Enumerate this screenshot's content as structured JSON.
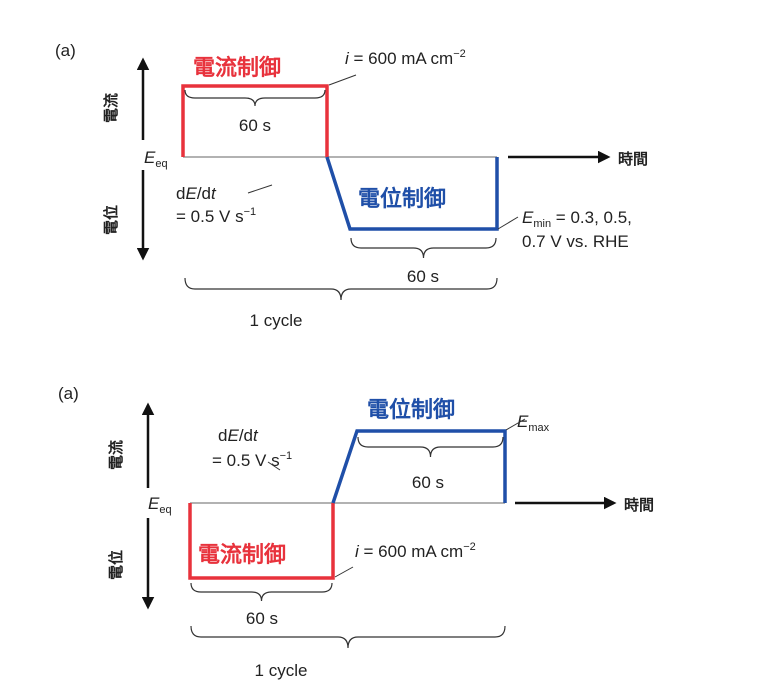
{
  "colors": {
    "current_control": "#e8323c",
    "potential_control": "#1f4fa8",
    "axis": "#111111",
    "baseline": "#888888"
  },
  "diagrams": [
    {
      "panel_label": "(a)",
      "y_axis_up": "電流",
      "y_axis_down": "電位",
      "x_axis": "時間",
      "eeq_main": "E",
      "eeq_sub": "eq",
      "current_control_label": "電流制御",
      "potential_control_label": "電位制御",
      "current_value_i": "i",
      "current_value_rest": " = 600 mA cm",
      "current_value_exp": "−2",
      "duration_current": "60 s",
      "duration_potential": "60 s",
      "sweep_line1_d": "d",
      "sweep_line1_E": "E",
      "sweep_line1_slash": "/d",
      "sweep_line1_t": "t",
      "sweep_line2": "= 0.5 V s",
      "sweep_line2_exp": "−1",
      "limit_main": "E",
      "limit_sub": "min",
      "limit_rest": " = 0.3, 0.5,",
      "limit_line2": "0.7 V vs. RHE",
      "cycle": "1 cycle"
    },
    {
      "panel_label": "(a)",
      "y_axis_up": "電流",
      "y_axis_down": "電位",
      "x_axis": "時間",
      "eeq_main": "E",
      "eeq_sub": "eq",
      "current_control_label": "電流制御",
      "potential_control_label": "電位制御",
      "current_value_i": "i",
      "current_value_rest": " = 600 mA cm",
      "current_value_exp": "−2",
      "duration_current": "60 s",
      "duration_potential": "60 s",
      "sweep_line1_d": "d",
      "sweep_line1_E": "E",
      "sweep_line1_slash": "/d",
      "sweep_line1_t": "t",
      "sweep_line2": "= 0.5 V s",
      "sweep_line2_exp": "−1",
      "limit_main": "E",
      "limit_sub": "max",
      "cycle": "1 cycle"
    }
  ]
}
